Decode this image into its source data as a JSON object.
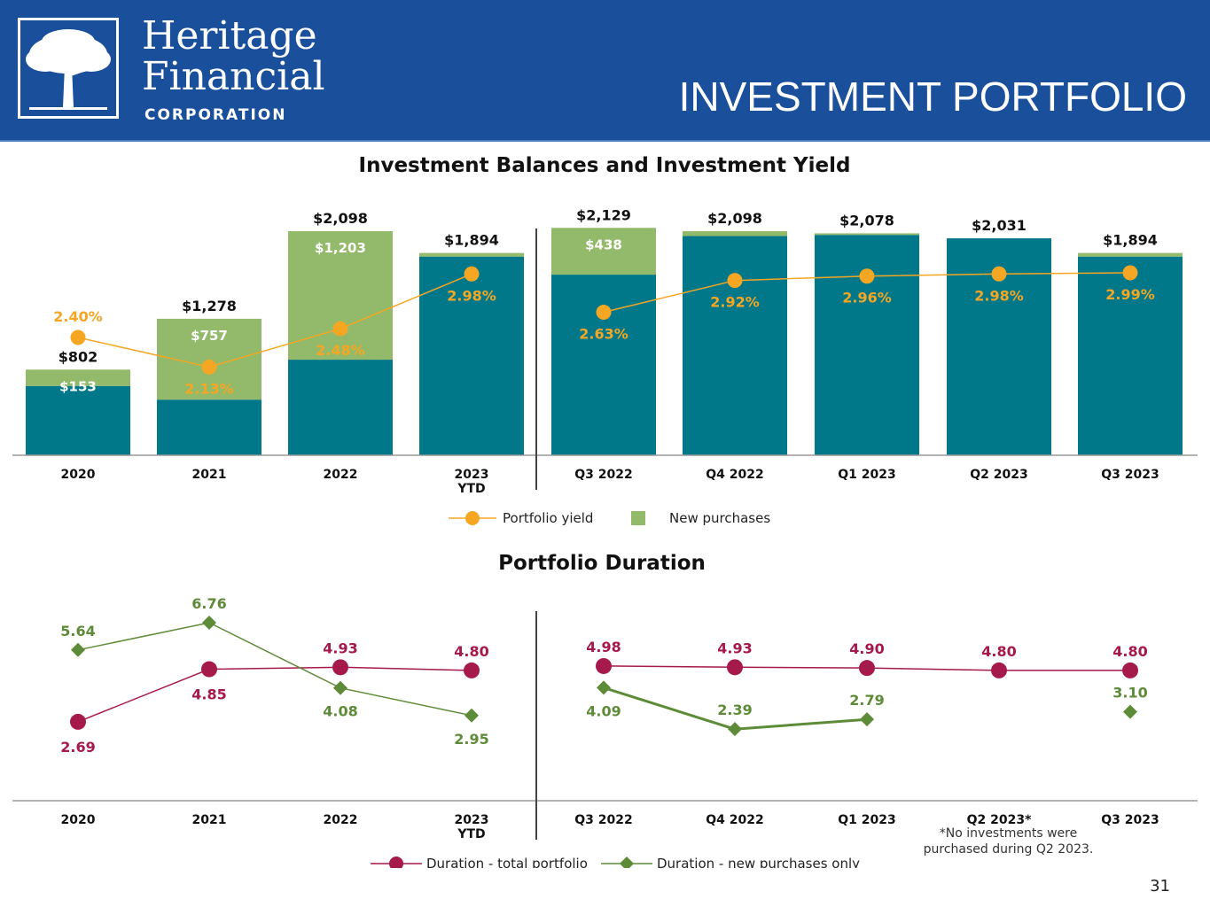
{
  "header": {
    "logo_line1": "Heritage",
    "logo_line2": "Financial",
    "logo_line3": "CORPORATION",
    "page_title": "INVESTMENT PORTFOLIO",
    "brand_color": "#1a4f9c"
  },
  "footnote": "*No investments were purchased during Q2 2023.",
  "page_number": "31",
  "colors": {
    "teal": "#00788a",
    "green": "#93ba6a",
    "yield": "#f5a623",
    "duration_total": "#a6194b",
    "duration_new": "#5e8b38"
  },
  "chart_data": [
    {
      "type": "bar",
      "title": "Investment Balances and Investment Yield",
      "categories": [
        "2020",
        "2021",
        "2022",
        "2023\nYTD",
        "Q3 2022",
        "Q4 2022",
        "Q1 2023",
        "Q2 2023",
        "Q3 2023"
      ],
      "total_labels": [
        "$802",
        "$1,278",
        "$2,098",
        "$1,894",
        "$2,129",
        "$2,098",
        "$2,078",
        "$2,031",
        "$1,894"
      ],
      "totals": [
        802,
        1278,
        2098,
        1894,
        2129,
        2098,
        2078,
        2031,
        1894
      ],
      "new_purchases": [
        153,
        757,
        1203,
        34,
        438,
        45,
        15,
        0,
        34
      ],
      "new_purchase_labels": [
        "$153",
        "$757",
        "$1,203",
        "",
        "$438",
        "",
        "",
        "",
        ""
      ],
      "yield": [
        2.4,
        2.13,
        2.48,
        2.98,
        2.63,
        2.92,
        2.96,
        2.98,
        2.99
      ],
      "yield_labels": [
        "2.40%",
        "2.13%",
        "2.48%",
        "2.98%",
        "2.63%",
        "2.92%",
        "2.96%",
        "2.98%",
        "2.99%"
      ],
      "ylim": [
        0,
        2200
      ],
      "legend": [
        {
          "name": "Portfolio yield",
          "marker": "circle"
        },
        {
          "name": "New purchases",
          "marker": "square"
        }
      ]
    },
    {
      "type": "line",
      "title": "Portfolio Duration",
      "categories": [
        "2020",
        "2021",
        "2022",
        "2023\nYTD",
        "Q3 2022",
        "Q4 2022",
        "Q1 2023",
        "Q2 2023*",
        "Q3 2023"
      ],
      "series": [
        {
          "name": "Duration - total portfolio",
          "values": [
            2.69,
            4.85,
            4.93,
            4.8,
            4.98,
            4.93,
            4.9,
            4.8,
            4.8
          ],
          "labels": [
            "2.69",
            "4.85",
            "4.93",
            "4.80",
            "4.98",
            "4.93",
            "4.90",
            "4.80",
            "4.80"
          ]
        },
        {
          "name": "Duration - new purchases only",
          "values": [
            5.64,
            6.76,
            4.08,
            2.95,
            4.09,
            2.39,
            2.79,
            null,
            3.1
          ],
          "labels": [
            "5.64",
            "6.76",
            "4.08",
            "2.95",
            "4.09",
            "2.39",
            "2.79",
            "",
            "3.10"
          ]
        }
      ],
      "ylim": [
        1.5,
        7.5
      ]
    }
  ]
}
